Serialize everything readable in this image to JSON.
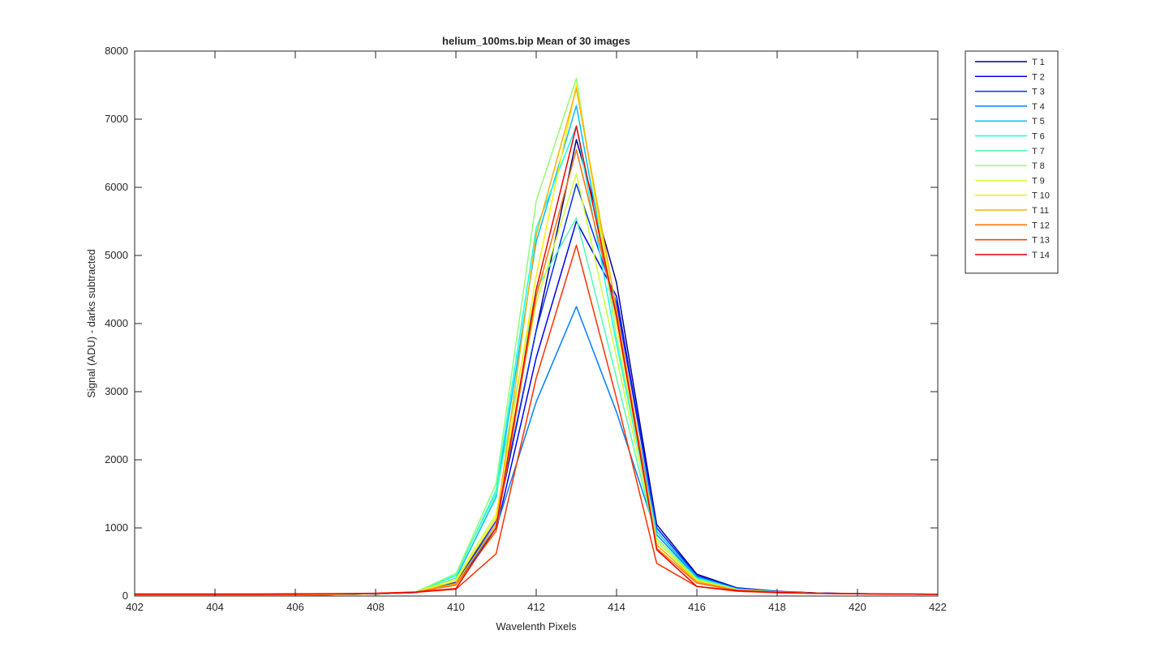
{
  "chart_data": {
    "type": "line",
    "title": "helium_100ms.bip  Mean of 30 images",
    "xlabel": "Wavelenth Pixels",
    "ylabel": "Signal (ADU) - darks subtracted",
    "xlim": [
      402,
      422
    ],
    "ylim": [
      0,
      8000
    ],
    "xticks": [
      402,
      404,
      406,
      408,
      410,
      412,
      414,
      416,
      418,
      420,
      422
    ],
    "yticks": [
      0,
      1000,
      2000,
      3000,
      4000,
      5000,
      6000,
      7000,
      8000
    ],
    "grid": false,
    "legend_position": "outside-top-right",
    "x": [
      402,
      403,
      404,
      405,
      406,
      407,
      408,
      409,
      410,
      411,
      412,
      413,
      414,
      415,
      416,
      417,
      418,
      419,
      420,
      421,
      422
    ],
    "series": [
      {
        "name": "T 1",
        "color": "#00008f",
        "values": [
          10,
          10,
          10,
          10,
          15,
          20,
          30,
          50,
          200,
          1050,
          3900,
          6700,
          4600,
          1050,
          320,
          120,
          70,
          45,
          35,
          30,
          25
        ]
      },
      {
        "name": "T 2",
        "color": "#0000ef",
        "values": [
          10,
          10,
          10,
          10,
          15,
          20,
          30,
          50,
          180,
          950,
          3500,
          5500,
          4400,
          1000,
          300,
          110,
          65,
          42,
          32,
          28,
          25
        ]
      },
      {
        "name": "T 3",
        "color": "#0030ff",
        "values": [
          12,
          12,
          12,
          12,
          15,
          20,
          30,
          52,
          210,
          1100,
          3900,
          6050,
          4300,
          1000,
          300,
          115,
          66,
          44,
          34,
          30,
          26
        ]
      },
      {
        "name": "T 4",
        "color": "#0080ff",
        "values": [
          12,
          12,
          12,
          12,
          15,
          20,
          30,
          50,
          190,
          1000,
          2850,
          4250,
          2700,
          900,
          270,
          100,
          60,
          40,
          32,
          28,
          25
        ]
      },
      {
        "name": "T 5",
        "color": "#00bfff",
        "values": [
          14,
          14,
          14,
          14,
          17,
          22,
          32,
          55,
          260,
          1450,
          5200,
          7200,
          4000,
          950,
          280,
          105,
          62,
          42,
          34,
          30,
          26
        ]
      },
      {
        "name": "T 6",
        "color": "#10ffef",
        "values": [
          14,
          14,
          14,
          14,
          17,
          22,
          32,
          55,
          300,
          1550,
          5400,
          6900,
          3700,
          850,
          260,
          100,
          60,
          40,
          32,
          28,
          25
        ]
      },
      {
        "name": "T 7",
        "color": "#50ffaf",
        "values": [
          15,
          15,
          15,
          15,
          18,
          23,
          33,
          58,
          330,
          1500,
          4500,
          5550,
          3200,
          800,
          240,
          95,
          58,
          40,
          32,
          28,
          25
        ]
      },
      {
        "name": "T 8",
        "color": "#8fff70",
        "values": [
          15,
          15,
          15,
          15,
          18,
          23,
          33,
          58,
          320,
          1650,
          5800,
          7600,
          3800,
          850,
          250,
          98,
          60,
          41,
          33,
          29,
          26
        ]
      },
      {
        "name": "T 9",
        "color": "#cfff30",
        "values": [
          16,
          16,
          16,
          16,
          19,
          24,
          34,
          58,
          250,
          1200,
          4300,
          6200,
          3500,
          800,
          230,
          92,
          56,
          40,
          32,
          28,
          25
        ]
      },
      {
        "name": "T 10",
        "color": "#ffef00",
        "values": [
          17,
          17,
          17,
          17,
          20,
          25,
          35,
          58,
          220,
          1150,
          4700,
          7500,
          4000,
          750,
          220,
          90,
          55,
          40,
          33,
          29,
          26
        ]
      },
      {
        "name": "T 11",
        "color": "#ffaf00",
        "values": [
          18,
          18,
          18,
          18,
          21,
          26,
          36,
          58,
          180,
          1050,
          5300,
          7450,
          4200,
          750,
          210,
          88,
          54,
          40,
          33,
          29,
          26
        ]
      },
      {
        "name": "T 12",
        "color": "#ff7000",
        "values": [
          20,
          20,
          20,
          20,
          23,
          28,
          38,
          60,
          160,
          950,
          4400,
          6550,
          4150,
          700,
          190,
          82,
          52,
          40,
          33,
          29,
          26
        ]
      },
      {
        "name": "T 13",
        "color": "#ff3000",
        "values": [
          25,
          25,
          25,
          25,
          27,
          30,
          38,
          55,
          100,
          620,
          3200,
          5150,
          2900,
          480,
          140,
          70,
          48,
          38,
          32,
          28,
          25
        ]
      },
      {
        "name": "T 14",
        "color": "#ef0000",
        "values": [
          30,
          30,
          30,
          30,
          32,
          35,
          40,
          58,
          110,
          1000,
          4500,
          6900,
          4100,
          680,
          140,
          80,
          55,
          40,
          33,
          29,
          26
        ]
      }
    ]
  }
}
